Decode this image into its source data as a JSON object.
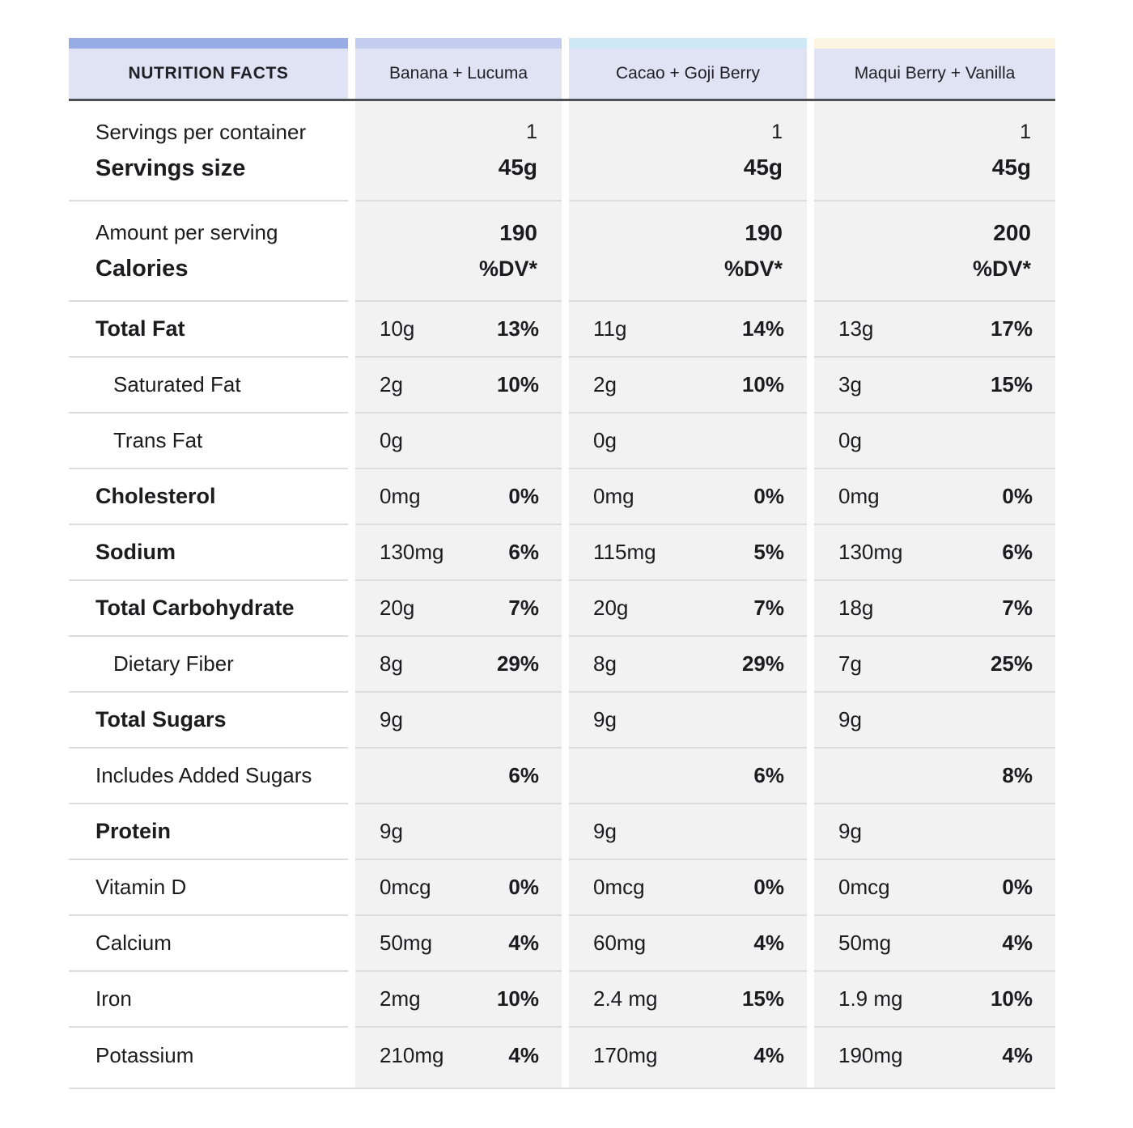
{
  "title": "NUTRITION FACTS",
  "products": [
    "Banana + Lucuma",
    "Cacao + Goji Berry",
    "Maqui Berry + Vanilla"
  ],
  "colors": {
    "corner_strip": "#97abe5",
    "product_strips": [
      "#c4cdf0",
      "#cee9f5",
      "#fcf5e2"
    ],
    "header_bg": "#dfe3f4",
    "header_border": "#4f5054",
    "cell_bg": "#f2f2f2",
    "row_border": "#dcdcdc"
  },
  "servings": {
    "label_top": "Servings per container",
    "label_bottom": "Servings size",
    "values": [
      {
        "top": "1",
        "bottom": "45g"
      },
      {
        "top": "1",
        "bottom": "45g"
      },
      {
        "top": "1",
        "bottom": "45g"
      }
    ]
  },
  "calories": {
    "label_top": "Amount per serving",
    "label_bottom": "Calories",
    "values": [
      {
        "top": "190",
        "bottom": "%DV*"
      },
      {
        "top": "190",
        "bottom": "%DV*"
      },
      {
        "top": "200",
        "bottom": "%DV*"
      }
    ]
  },
  "rows": [
    {
      "label": "Total Fat",
      "style": "bold",
      "cells": [
        {
          "amount": "10g",
          "dv": "13%"
        },
        {
          "amount": "11g",
          "dv": "14%"
        },
        {
          "amount": "13g",
          "dv": "17%"
        }
      ]
    },
    {
      "label": "Saturated Fat",
      "style": "indent",
      "cells": [
        {
          "amount": "2g",
          "dv": "10%"
        },
        {
          "amount": "2g",
          "dv": "10%"
        },
        {
          "amount": "3g",
          "dv": "15%"
        }
      ]
    },
    {
      "label": "Trans Fat",
      "style": "indent",
      "cells": [
        {
          "amount": "0g",
          "dv": ""
        },
        {
          "amount": "0g",
          "dv": ""
        },
        {
          "amount": "0g",
          "dv": ""
        }
      ]
    },
    {
      "label": "Cholesterol",
      "style": "bold",
      "cells": [
        {
          "amount": "0mg",
          "dv": "0%"
        },
        {
          "amount": "0mg",
          "dv": "0%"
        },
        {
          "amount": "0mg",
          "dv": "0%"
        }
      ]
    },
    {
      "label": "Sodium",
      "style": "bold",
      "cells": [
        {
          "amount": "130mg",
          "dv": "6%"
        },
        {
          "amount": "115mg",
          "dv": "5%"
        },
        {
          "amount": "130mg",
          "dv": "6%"
        }
      ]
    },
    {
      "label": "Total Carbohydrate",
      "style": "bold",
      "cells": [
        {
          "amount": "20g",
          "dv": "7%"
        },
        {
          "amount": "20g",
          "dv": "7%"
        },
        {
          "amount": "18g",
          "dv": "7%"
        }
      ]
    },
    {
      "label": "Dietary Fiber",
      "style": "indent",
      "cells": [
        {
          "amount": "8g",
          "dv": "29%"
        },
        {
          "amount": "8g",
          "dv": "29%"
        },
        {
          "amount": "7g",
          "dv": "25%"
        }
      ]
    },
    {
      "label": "Total Sugars",
      "style": "bold",
      "cells": [
        {
          "amount": "9g",
          "dv": ""
        },
        {
          "amount": "9g",
          "dv": ""
        },
        {
          "amount": "9g",
          "dv": ""
        }
      ]
    },
    {
      "label": "Includes Added Sugars",
      "style": "regular",
      "cells": [
        {
          "amount": "",
          "dv": "6%"
        },
        {
          "amount": "",
          "dv": "6%"
        },
        {
          "amount": "",
          "dv": "8%"
        }
      ]
    },
    {
      "label": "Protein",
      "style": "bold",
      "cells": [
        {
          "amount": "9g",
          "dv": ""
        },
        {
          "amount": "9g",
          "dv": ""
        },
        {
          "amount": "9g",
          "dv": ""
        }
      ]
    },
    {
      "label": "Vitamin D",
      "style": "regular",
      "cells": [
        {
          "amount": "0mcg",
          "dv": "0%"
        },
        {
          "amount": "0mcg",
          "dv": "0%"
        },
        {
          "amount": "0mcg",
          "dv": "0%"
        }
      ]
    },
    {
      "label": "Calcium",
      "style": "regular",
      "cells": [
        {
          "amount": "50mg",
          "dv": "4%"
        },
        {
          "amount": "60mg",
          "dv": "4%"
        },
        {
          "amount": "50mg",
          "dv": "4%"
        }
      ]
    },
    {
      "label": "Iron",
      "style": "regular",
      "cells": [
        {
          "amount": "2mg",
          "dv": "10%"
        },
        {
          "amount": "2.4 mg",
          "dv": "15%"
        },
        {
          "amount": "1.9 mg",
          "dv": "10%"
        }
      ]
    },
    {
      "label": "Potassium",
      "style": "regular",
      "cells": [
        {
          "amount": "210mg",
          "dv": "4%"
        },
        {
          "amount": "170mg",
          "dv": "4%"
        },
        {
          "amount": "190mg",
          "dv": "4%"
        }
      ]
    }
  ]
}
